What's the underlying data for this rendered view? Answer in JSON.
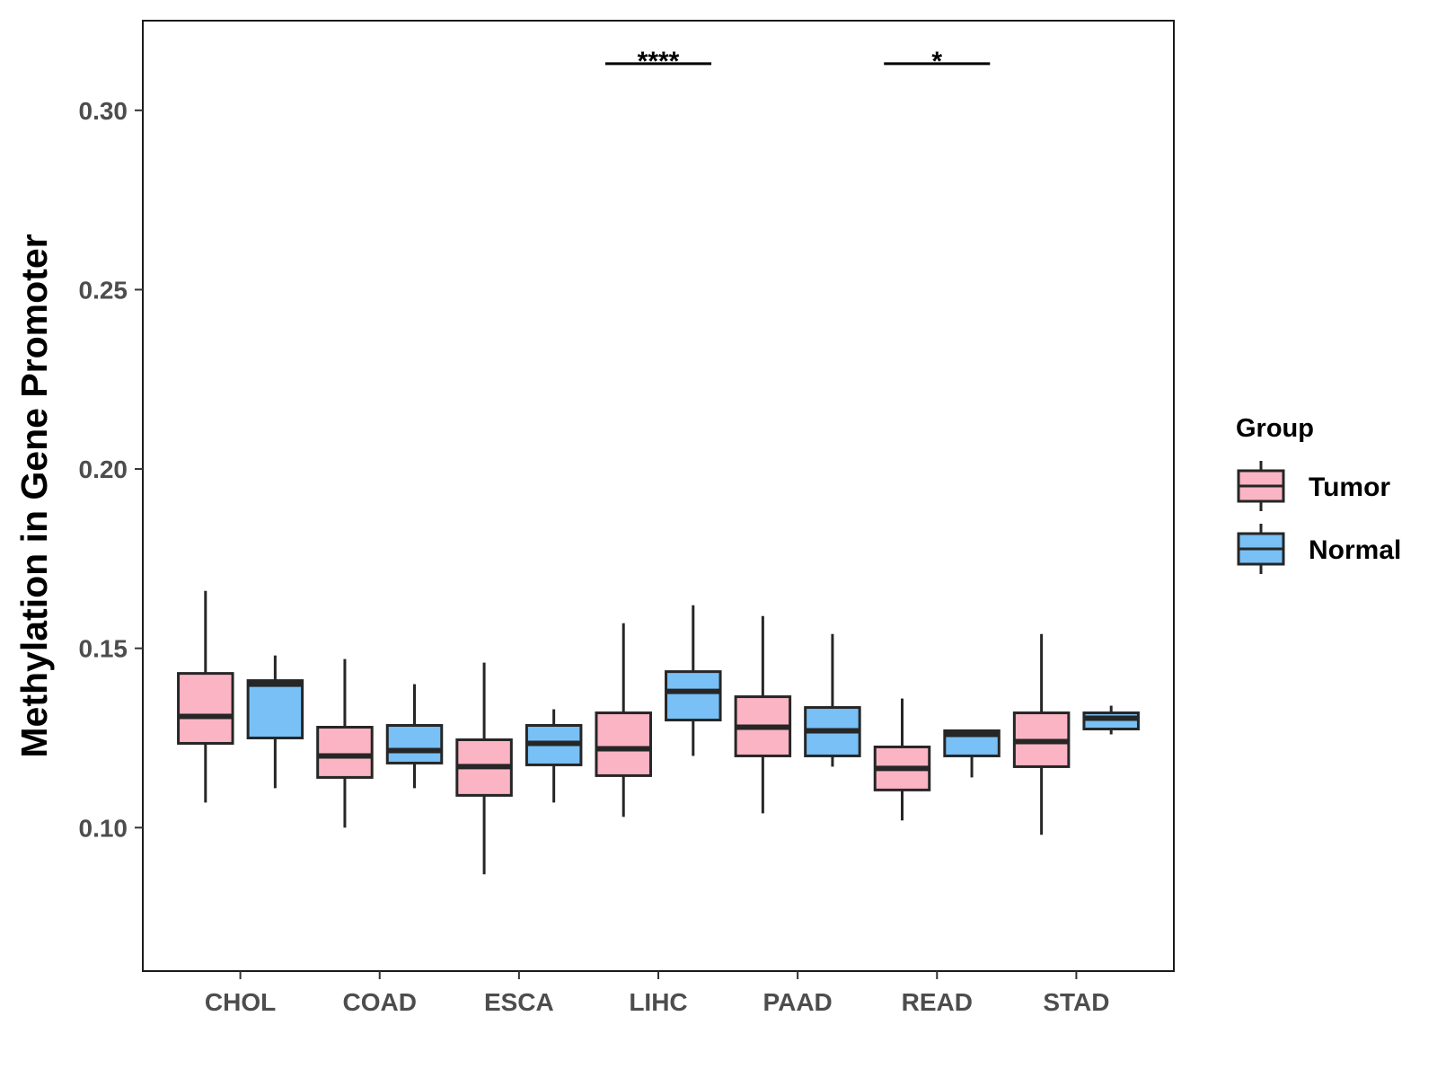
{
  "chart_data": {
    "type": "box",
    "title": "",
    "xlabel": "",
    "ylabel": "Methylation in Gene Promoter",
    "ylim": [
      0.06,
      0.325
    ],
    "yticks": [
      "0.10",
      "0.15",
      "0.20",
      "0.25",
      "0.30"
    ],
    "categories": [
      "CHOL",
      "COAD",
      "ESCA",
      "LIHC",
      "PAAD",
      "READ",
      "STAD"
    ],
    "legend": {
      "title": "Group",
      "position": "right",
      "entries": [
        {
          "name": "Tumor",
          "color": "#FBB4C4"
        },
        {
          "name": "Normal",
          "color": "#78C0F5"
        }
      ]
    },
    "series": [
      {
        "name": "Tumor",
        "color": "#FBB4C4",
        "boxes": [
          {
            "min": 0.107,
            "q1": 0.1235,
            "median": 0.131,
            "q3": 0.143,
            "max": 0.166
          },
          {
            "min": 0.1,
            "q1": 0.114,
            "median": 0.12,
            "q3": 0.128,
            "max": 0.147
          },
          {
            "min": 0.087,
            "q1": 0.109,
            "median": 0.117,
            "q3": 0.1245,
            "max": 0.146
          },
          {
            "min": 0.103,
            "q1": 0.1145,
            "median": 0.122,
            "q3": 0.132,
            "max": 0.157
          },
          {
            "min": 0.104,
            "q1": 0.12,
            "median": 0.128,
            "q3": 0.1365,
            "max": 0.159
          },
          {
            "min": 0.102,
            "q1": 0.1105,
            "median": 0.1165,
            "q3": 0.1225,
            "max": 0.136
          },
          {
            "min": 0.098,
            "q1": 0.117,
            "median": 0.124,
            "q3": 0.132,
            "max": 0.154
          }
        ]
      },
      {
        "name": "Normal",
        "color": "#78C0F5",
        "boxes": [
          {
            "min": 0.111,
            "q1": 0.125,
            "median": 0.14,
            "q3": 0.141,
            "max": 0.148
          },
          {
            "min": 0.111,
            "q1": 0.118,
            "median": 0.1215,
            "q3": 0.1285,
            "max": 0.14
          },
          {
            "min": 0.107,
            "q1": 0.1175,
            "median": 0.1235,
            "q3": 0.1285,
            "max": 0.133
          },
          {
            "min": 0.12,
            "q1": 0.13,
            "median": 0.138,
            "q3": 0.1435,
            "max": 0.162
          },
          {
            "min": 0.117,
            "q1": 0.12,
            "median": 0.127,
            "q3": 0.1335,
            "max": 0.154
          },
          {
            "min": 0.114,
            "q1": 0.12,
            "median": 0.126,
            "q3": 0.127,
            "max": 0.127
          },
          {
            "min": 0.126,
            "q1": 0.1275,
            "median": 0.1305,
            "q3": 0.132,
            "max": 0.134
          }
        ]
      }
    ],
    "significance": [
      {
        "category": "LIHC",
        "label": "****"
      },
      {
        "category": "READ",
        "label": "*"
      }
    ],
    "grid": false
  }
}
